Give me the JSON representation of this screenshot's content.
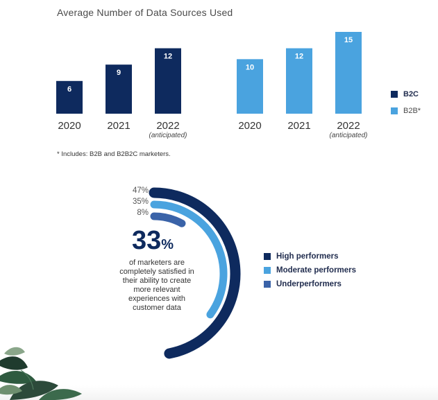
{
  "chart_data": [
    {
      "type": "bar",
      "title": "Average Number of Data Sources Used",
      "categories": [
        "2020",
        "2021",
        "2022"
      ],
      "category_notes": [
        "",
        "",
        "(anticipated)"
      ],
      "series": [
        {
          "name": "B2C",
          "values": [
            6,
            9,
            12
          ],
          "color": "#0e2a5e"
        },
        {
          "name": "B2B*",
          "values": [
            10,
            12,
            15
          ],
          "color": "#4aa3df"
        }
      ],
      "ylim": [
        0,
        15
      ],
      "grid": false,
      "legend_position": "right",
      "footnote": "* Includes: B2B and B2B2C marketers."
    },
    {
      "type": "radial-bar",
      "series": [
        {
          "name": "High performers",
          "value": 47,
          "label": "47%",
          "color": "#0e2a5e"
        },
        {
          "name": "Moderate performers",
          "value": 35,
          "label": "35%",
          "color": "#4aa3df"
        },
        {
          "name": "Underperformers",
          "value": 8,
          "label": "8%",
          "color": "#3a63a8"
        }
      ],
      "center_stat": {
        "value": "33",
        "unit": "%"
      },
      "center_text": "of marketers are completely satisfied in their ability to create more relevant experiences with customer data",
      "legend_position": "right"
    }
  ],
  "bottom_band_color": "#f3f3f3"
}
